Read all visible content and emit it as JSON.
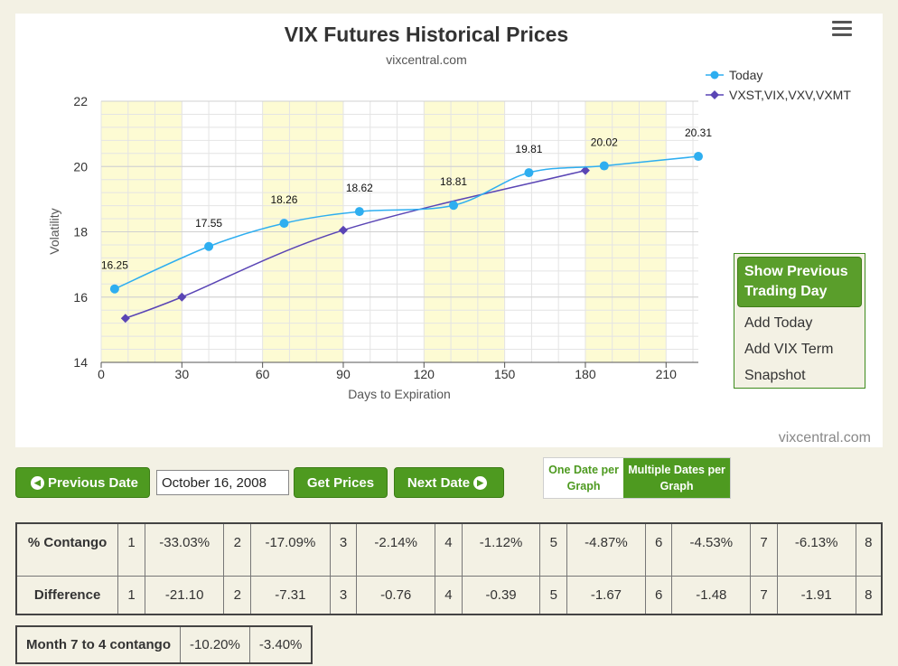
{
  "chart": {
    "title": "VIX Futures Historical Prices",
    "subtitle": "vixcentral.com",
    "credit": "vixcentral.com"
  },
  "chart_data": {
    "type": "line",
    "title": "VIX Futures Historical Prices",
    "subtitle": "vixcentral.com",
    "xlabel": "Days to Expiration",
    "ylabel": "Volatility",
    "xlim": [
      0,
      222
    ],
    "ylim": [
      14,
      22
    ],
    "x_ticks": [
      0,
      30,
      60,
      90,
      120,
      150,
      180,
      210
    ],
    "y_ticks": [
      14,
      16,
      18,
      20,
      22
    ],
    "x_minor_interval": 10,
    "y_minor_interval": 0.4,
    "shaded_bands": [
      [
        0,
        30
      ],
      [
        60,
        90
      ],
      [
        120,
        150
      ],
      [
        180,
        210
      ]
    ],
    "legend": "top-right",
    "grid": true,
    "series": [
      {
        "name": "Today",
        "color": "#2eaef0",
        "marker": "circle",
        "x": [
          5,
          40,
          68,
          96,
          131,
          159,
          187,
          222
        ],
        "y": [
          16.25,
          17.55,
          18.26,
          18.62,
          18.81,
          19.81,
          20.02,
          20.31
        ],
        "labels": [
          "16.25",
          "17.55",
          "18.26",
          "18.62",
          "18.81",
          "19.81",
          "20.02",
          "20.31"
        ]
      },
      {
        "name": "VXST,VIX,VXV,VXMT",
        "color": "#5a45b5",
        "marker": "diamond",
        "x": [
          9,
          30,
          90,
          180
        ],
        "y": [
          15.35,
          16.0,
          18.05,
          19.88
        ]
      }
    ]
  },
  "prev_menu": {
    "button": "Show Previous Trading Day",
    "items": [
      "Add Today",
      "Add VIX Term",
      "Snapshot"
    ]
  },
  "controls": {
    "prev_date": "Previous Date",
    "date_value": "October 16, 2008",
    "get_prices": "Get Prices",
    "next_date": "Next Date",
    "one_date": "One Date per Graph",
    "multiple_dates": "Multiple Dates per Graph"
  },
  "contango_table": {
    "row1_label": "% Contango",
    "row2_label": "Difference",
    "indices": [
      "1",
      "2",
      "3",
      "4",
      "5",
      "6",
      "7",
      "8"
    ],
    "contango": [
      "-33.03%",
      "-17.09%",
      "-2.14%",
      "-1.12%",
      "-4.87%",
      "-4.53%",
      "-6.13%"
    ],
    "difference": [
      "-21.10",
      "-7.31",
      "-0.76",
      "-0.39",
      "-1.67",
      "-1.48",
      "-1.91"
    ]
  },
  "month_table": {
    "label": "Month 7 to 4 contango",
    "values": [
      "-10.20%",
      "-3.40%"
    ]
  }
}
